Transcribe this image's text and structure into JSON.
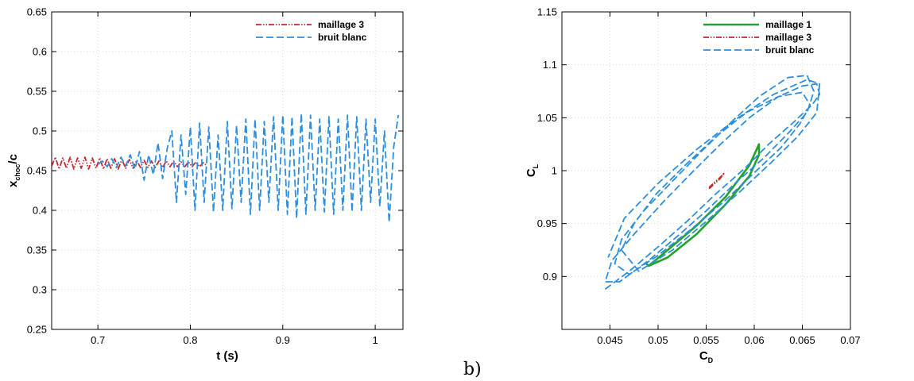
{
  "chart_data": [
    {
      "type": "line",
      "xlabel": "t (s)",
      "ylabel": {
        "main": "x",
        "sub": "choc",
        "suffix": "/c"
      },
      "xlim": [
        0.65,
        1.03
      ],
      "ylim": [
        0.25,
        0.65
      ],
      "xticks": [
        0.7,
        0.8,
        0.9,
        1
      ],
      "xtick_labels": [
        "0.7",
        "0.8",
        "0.9",
        "1"
      ],
      "yticks": [
        0.25,
        0.3,
        0.35,
        0.4,
        0.45,
        0.5,
        0.55,
        0.6,
        0.65
      ],
      "ytick_labels": [
        "0.25",
        "0.3",
        "0.35",
        "0.4",
        "0.45",
        "0.5",
        "0.55",
        "0.6",
        "0.65"
      ],
      "grid": true,
      "legend_position": "top-right",
      "series": [
        {
          "name": "maillage 3",
          "color": "#c8282d",
          "dash": "dash-dot-dot",
          "x": [
            0.65,
            0.654,
            0.658,
            0.662,
            0.666,
            0.67,
            0.674,
            0.678,
            0.682,
            0.686,
            0.69,
            0.694,
            0.698,
            0.702,
            0.706,
            0.71,
            0.714,
            0.718,
            0.722,
            0.726,
            0.73,
            0.734,
            0.738,
            0.742,
            0.746,
            0.75,
            0.754,
            0.758,
            0.762,
            0.766,
            0.77,
            0.774,
            0.778,
            0.782,
            0.786,
            0.79,
            0.794,
            0.798,
            0.802,
            0.806,
            0.81,
            0.814,
            0.818
          ],
          "y": [
            0.456,
            0.467,
            0.452,
            0.466,
            0.453,
            0.467,
            0.452,
            0.466,
            0.453,
            0.467,
            0.452,
            0.466,
            0.453,
            0.466,
            0.452,
            0.465,
            0.453,
            0.465,
            0.452,
            0.464,
            0.453,
            0.464,
            0.453,
            0.463,
            0.454,
            0.463,
            0.454,
            0.462,
            0.454,
            0.462,
            0.454,
            0.462,
            0.455,
            0.462,
            0.455,
            0.461,
            0.455,
            0.461,
            0.455,
            0.461,
            0.455,
            0.46,
            0.456
          ]
        },
        {
          "name": "bruit blanc",
          "color": "#2d8ee0",
          "dash": "long-dash",
          "x": [
            0.7,
            0.705,
            0.71,
            0.715,
            0.72,
            0.725,
            0.73,
            0.735,
            0.74,
            0.745,
            0.75,
            0.755,
            0.76,
            0.765,
            0.77,
            0.775,
            0.78,
            0.785,
            0.79,
            0.795,
            0.8,
            0.805,
            0.81,
            0.815,
            0.82,
            0.825,
            0.83,
            0.835,
            0.84,
            0.845,
            0.85,
            0.855,
            0.86,
            0.865,
            0.87,
            0.875,
            0.88,
            0.885,
            0.89,
            0.895,
            0.9,
            0.905,
            0.91,
            0.915,
            0.92,
            0.925,
            0.93,
            0.935,
            0.94,
            0.945,
            0.95,
            0.955,
            0.96,
            0.965,
            0.97,
            0.975,
            0.98,
            0.985,
            0.99,
            0.995,
            1.0,
            1.005,
            1.01,
            1.015,
            1.02,
            1.025
          ],
          "y": [
            0.458,
            0.462,
            0.455,
            0.465,
            0.454,
            0.467,
            0.456,
            0.47,
            0.452,
            0.474,
            0.438,
            0.47,
            0.445,
            0.485,
            0.44,
            0.478,
            0.5,
            0.41,
            0.495,
            0.42,
            0.505,
            0.4,
            0.51,
            0.41,
            0.505,
            0.398,
            0.495,
            0.4,
            0.512,
            0.402,
            0.507,
            0.41,
            0.515,
            0.395,
            0.515,
            0.4,
            0.512,
            0.41,
            0.518,
            0.4,
            0.52,
            0.395,
            0.518,
            0.39,
            0.522,
            0.395,
            0.52,
            0.4,
            0.515,
            0.398,
            0.518,
            0.395,
            0.515,
            0.4,
            0.52,
            0.398,
            0.518,
            0.4,
            0.515,
            0.41,
            0.515,
            0.405,
            0.5,
            0.385,
            0.48,
            0.52
          ]
        }
      ]
    },
    {
      "type": "line",
      "xlabel": {
        "main": "C",
        "sub": "D"
      },
      "ylabel": {
        "main": "C",
        "sub": "L"
      },
      "xlim": [
        0.04,
        0.07
      ],
      "ylim": [
        0.85,
        1.15
      ],
      "xticks": [
        0.045,
        0.05,
        0.055,
        0.06,
        0.065,
        0.07
      ],
      "xtick_labels": [
        "0.045",
        "0.05",
        "0.055",
        "0.06",
        "0.065",
        "0.07"
      ],
      "yticks": [
        0.9,
        0.95,
        1.0,
        1.05,
        1.1,
        1.15
      ],
      "ytick_labels": [
        "0.9",
        "0.95",
        "1",
        "1.05",
        "1.1",
        "1.15"
      ],
      "grid": true,
      "legend_position": "top-right",
      "series": [
        {
          "name": "maillage 1",
          "color": "#22a32a",
          "dash": "solid",
          "x": [
            0.049,
            0.051,
            0.054,
            0.057,
            0.0595,
            0.0605,
            0.0605,
            0.0595,
            0.057,
            0.054,
            0.051,
            0.049,
            0.0488,
            0.049
          ],
          "y": [
            0.91,
            0.925,
            0.948,
            0.975,
            1.005,
            1.025,
            1.015,
            0.995,
            0.968,
            0.94,
            0.918,
            0.91,
            0.912,
            0.91
          ]
        },
        {
          "name": "maillage 3",
          "color": "#c8282d",
          "dash": "dash-dot-dot",
          "x": [
            0.0553,
            0.0558,
            0.0564,
            0.0569,
            0.0566,
            0.056,
            0.0554,
            0.0553
          ],
          "y": [
            0.983,
            0.987,
            0.992,
            0.998,
            0.995,
            0.99,
            0.985,
            0.983
          ]
        },
        {
          "name": "bruit blanc",
          "color": "#2d8ee0",
          "dash": "long-dash",
          "x": [
            0.0445,
            0.047,
            0.05,
            0.053,
            0.056,
            0.059,
            0.0615,
            0.064,
            0.066,
            0.0668,
            0.0665,
            0.065,
            0.0625,
            0.0595,
            0.0565,
            0.0535,
            0.0505,
            0.0475,
            0.0452,
            0.0445,
            0.046,
            0.049,
            0.052,
            0.055,
            0.058,
            0.061,
            0.0635,
            0.0655,
            0.0662,
            0.0655,
            0.0635,
            0.0605,
            0.0575,
            0.0545,
            0.0515,
            0.0485,
            0.0462,
            0.0455,
            0.047,
            0.05,
            0.0535,
            0.057,
            0.06,
            0.0628,
            0.0648,
            0.0658,
            0.065,
            0.0625,
            0.0592,
            0.056,
            0.0528,
            0.0498,
            0.0475,
            0.0462,
            0.048,
            0.0515,
            0.055,
            0.0585,
            0.0618,
            0.0645,
            0.0665,
            0.0668,
            0.0655,
            0.062,
            0.058,
            0.054,
            0.05,
            0.0465,
            0.0448
          ],
          "y": [
            0.888,
            0.905,
            0.928,
            0.952,
            0.978,
            1.002,
            1.025,
            1.045,
            1.062,
            1.072,
            1.082,
            1.08,
            1.07,
            1.05,
            1.025,
            0.998,
            0.97,
            0.94,
            0.915,
            0.895,
            0.895,
            0.915,
            0.938,
            0.962,
            0.988,
            1.012,
            1.035,
            1.055,
            1.075,
            1.09,
            1.088,
            1.07,
            1.045,
            1.018,
            0.99,
            0.962,
            0.935,
            0.912,
            0.902,
            0.92,
            0.945,
            0.972,
            0.998,
            1.022,
            1.045,
            1.062,
            1.074,
            1.07,
            1.055,
            1.032,
            1.005,
            0.978,
            0.95,
            0.925,
            0.905,
            0.925,
            0.952,
            0.98,
            1.008,
            1.032,
            1.055,
            1.082,
            1.086,
            1.072,
            1.048,
            1.02,
            0.988,
            0.955,
            0.918
          ]
        }
      ]
    }
  ],
  "panel_tag": "b)"
}
